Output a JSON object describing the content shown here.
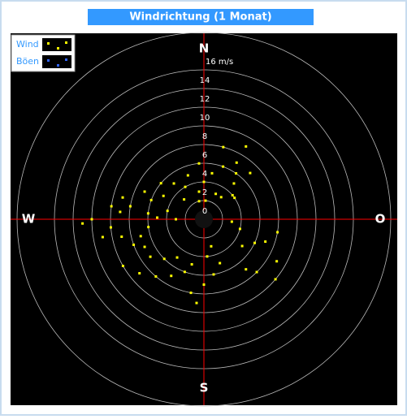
{
  "chart_data": {
    "type": "polar-scatter",
    "title": "Windrichtung (1 Monat)",
    "directions": [
      "N",
      "O",
      "S",
      "W"
    ],
    "rlim": [
      0,
      20
    ],
    "rticks": [
      0,
      2,
      4,
      6,
      8,
      10,
      12,
      14,
      {
        "value": 16,
        "label": "16 m/s"
      }
    ],
    "grid": true,
    "legend": "top-left",
    "series": [
      {
        "name": "Wind",
        "color": "#ffff00",
        "direction": [
          265,
          270,
          275,
          280,
          260,
          255,
          285,
          290,
          268,
          272,
          250,
          295,
          262,
          278,
          283,
          258,
          300,
          245,
          270,
          276,
          20,
          30,
          40,
          15,
          35,
          50,
          25,
          45,
          10,
          55,
          30,
          38,
          100,
          110,
          120,
          130,
          115,
          125,
          140,
          105,
          135,
          95,
          160,
          170,
          180,
          190,
          200,
          175,
          185,
          165,
          195,
          210,
          220,
          230,
          240,
          225,
          235,
          215,
          0,
          350,
          340,
          5,
          355,
          330,
          320,
          310,
          315,
          345
        ],
        "speed": [
          10,
          12,
          9,
          8,
          11,
          7,
          9,
          6,
          13,
          5,
          8,
          7,
          6,
          10,
          4,
          9,
          5,
          7,
          3,
          6,
          6,
          7,
          5,
          8,
          6,
          4,
          3,
          7,
          5,
          4,
          9,
          3,
          8,
          7,
          9,
          10,
          6,
          5,
          7,
          4,
          8,
          3,
          5,
          6,
          7,
          8,
          6,
          4,
          9,
          3,
          5,
          7,
          8,
          9,
          10,
          6,
          7,
          5,
          4,
          3,
          5,
          2,
          6,
          4,
          5,
          6,
          3,
          2
        ]
      },
      {
        "name": "Böen",
        "color": "#3366ff",
        "direction": [],
        "speed": []
      }
    ]
  }
}
